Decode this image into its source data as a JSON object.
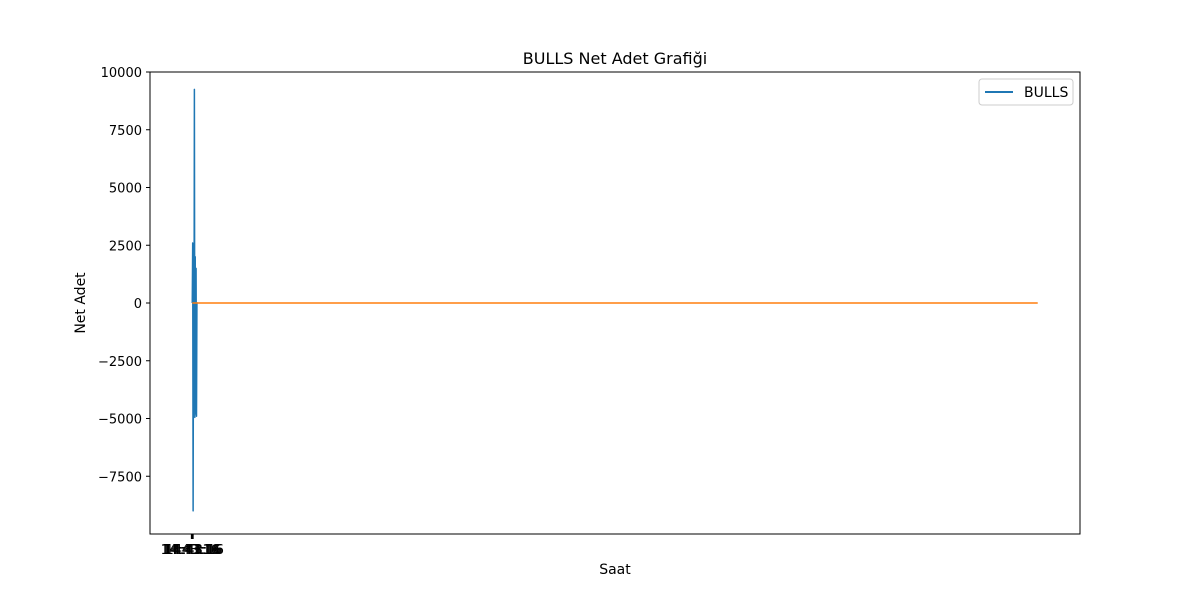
{
  "chart_data": {
    "type": "line",
    "title": "BULLS Net Adet Grafiği",
    "xlabel": "Saat",
    "ylabel": "Net Adet",
    "x_tick_text": "14:43:16",
    "y_ticks": [
      {
        "value": 10000,
        "label": "10000"
      },
      {
        "value": 7500,
        "label": "7500"
      },
      {
        "value": 5000,
        "label": "5000"
      },
      {
        "value": 2500,
        "label": "2500"
      },
      {
        "value": 0,
        "label": "0"
      },
      {
        "value": -2500,
        "label": "−2500"
      },
      {
        "value": -5000,
        "label": "−5000"
      },
      {
        "value": -7500,
        "label": "−7500"
      }
    ],
    "xlim": [
      -2,
      42
    ],
    "ylim": [
      -10000,
      10000
    ],
    "grid": false,
    "legend": {
      "position": "top-right",
      "entries": [
        "BULLS"
      ]
    },
    "series": [
      {
        "name": "BULLS",
        "color": "#1f77b4",
        "x": [
          0.0,
          0.02,
          0.04,
          0.06,
          0.08,
          0.1,
          0.12,
          0.14,
          0.16,
          0.18,
          0.2,
          0.22,
          0.24,
          0.26
        ],
        "y": [
          0,
          2600,
          -9000,
          1800,
          -4500,
          9250,
          -4950,
          2000,
          -4800,
          1500,
          -4900,
          0,
          0,
          0
        ]
      },
      {
        "color": "#ff7f0e",
        "x": [
          0,
          40
        ],
        "y": [
          0,
          0
        ]
      }
    ]
  }
}
